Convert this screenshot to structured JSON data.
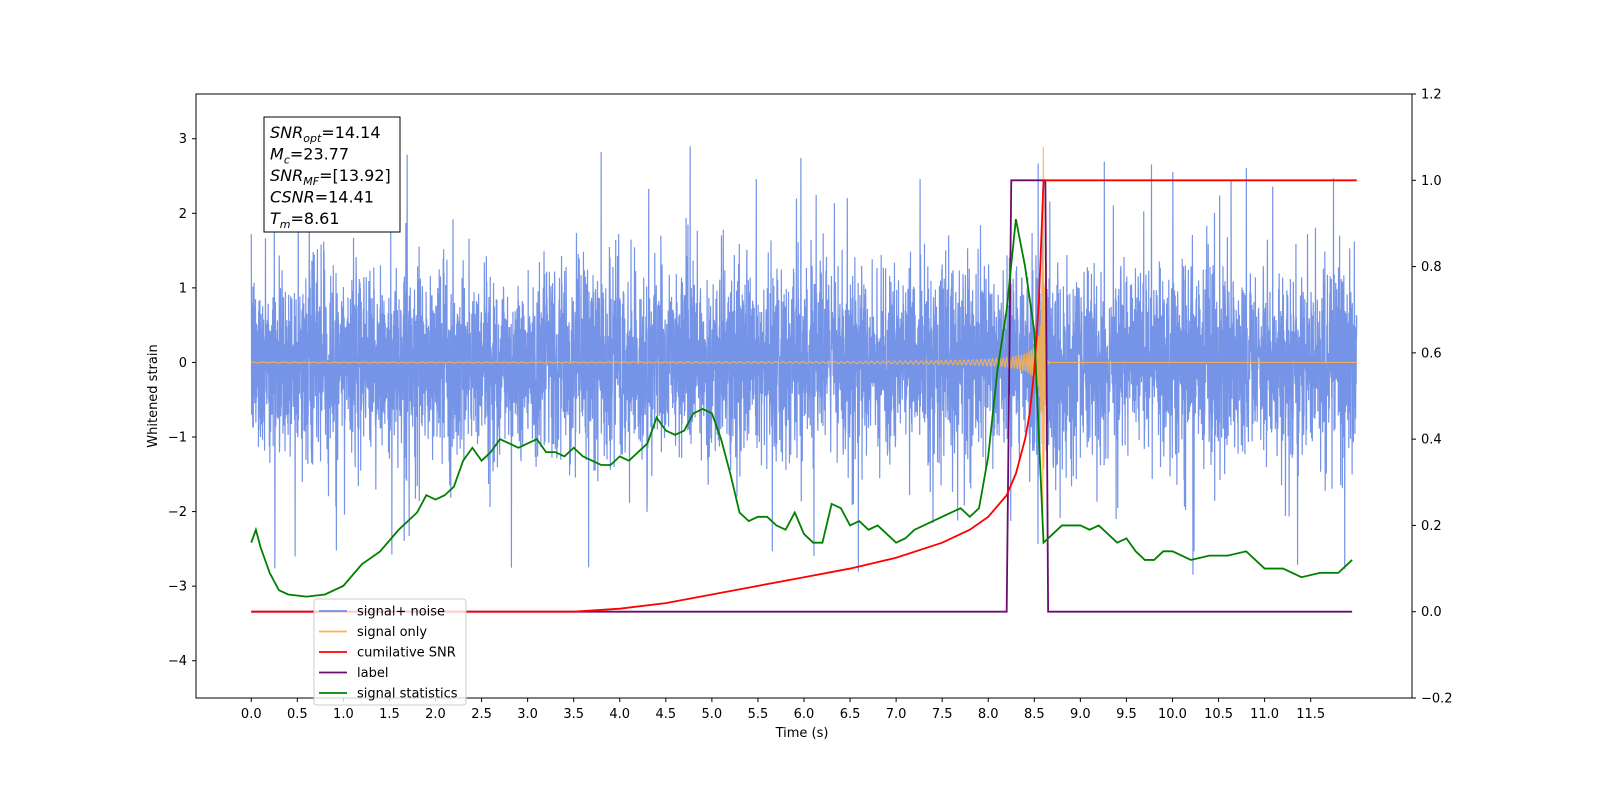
{
  "chart_data": {
    "type": "line",
    "title": "",
    "xlabel": "Time (s)",
    "ylabel": "Whitened strain",
    "xlim": [
      -0.6,
      12.6
    ],
    "ylim": [
      -4.5,
      3.6
    ],
    "y2lim": [
      -0.2,
      1.2
    ],
    "x_ticks": [
      0.0,
      0.5,
      1.0,
      1.5,
      2.0,
      2.5,
      3.0,
      3.5,
      4.0,
      4.5,
      5.0,
      5.5,
      6.0,
      6.5,
      7.0,
      7.5,
      8.0,
      8.5,
      9.0,
      9.5,
      10.0,
      10.5,
      11.0,
      11.5
    ],
    "x_tick_labels": [
      "0.0",
      "0.5",
      "1.0",
      "1.5",
      "2.0",
      "2.5",
      "3.0",
      "3.5",
      "4.0",
      "4.5",
      "5.0",
      "5.5",
      "6.0",
      "6.5",
      "7.0",
      "7.5",
      "8.0",
      "8.5",
      "9.0",
      "9.5",
      "10.0",
      "10.5",
      "11.0",
      "11.5"
    ],
    "y_ticks": [
      -4,
      -3,
      -2,
      -1,
      0,
      1,
      2,
      3
    ],
    "y_tick_labels": [
      "−4",
      "−3",
      "−2",
      "−1",
      "0",
      "1",
      "2",
      "3"
    ],
    "y2_ticks": [
      -0.2,
      0.0,
      0.2,
      0.4,
      0.6,
      0.8,
      1.0,
      1.2
    ],
    "y2_tick_labels": [
      "−0.2",
      "0.0",
      "0.2",
      "0.4",
      "0.6",
      "0.8",
      "1.0",
      "1.2"
    ],
    "grid": false,
    "legend_position": "bottom-left",
    "series": [
      {
        "name": "signal+ noise",
        "axis": "left",
        "color": "#6f8ee6",
        "noise": {
          "x_start": 0.0,
          "x_end": 12.0,
          "typical_range": [
            -1.8,
            1.8
          ],
          "extremes": [
            -4.1,
            3.25
          ]
        }
      },
      {
        "name": "signal only",
        "axis": "left",
        "color": "#ffb347",
        "chirp": {
          "x_start": 0.0,
          "x_merge": 8.6,
          "peak": 2.9
        }
      },
      {
        "name": "cumilative SNR",
        "axis": "right",
        "color": "#ff0000",
        "x": [
          0.0,
          3.5,
          4.0,
          4.5,
          5.0,
          5.5,
          6.0,
          6.5,
          7.0,
          7.5,
          7.8,
          8.0,
          8.2,
          8.3,
          8.4,
          8.45,
          8.5,
          8.55,
          8.6,
          12.0
        ],
        "values": [
          0.0,
          0.0,
          0.007,
          0.02,
          0.04,
          0.06,
          0.08,
          0.1,
          0.125,
          0.16,
          0.19,
          0.22,
          0.27,
          0.32,
          0.4,
          0.46,
          0.56,
          0.72,
          1.0,
          1.0
        ]
      },
      {
        "name": "label",
        "axis": "right",
        "color": "#6a0d6e",
        "x": [
          0.0,
          8.2,
          8.25,
          8.62,
          8.65,
          11.95
        ],
        "values": [
          0.0,
          0.0,
          1.0,
          1.0,
          0.0,
          0.0
        ]
      },
      {
        "name": "signal statistics",
        "axis": "right",
        "color": "#008000",
        "x": [
          0.0,
          0.05,
          0.1,
          0.2,
          0.3,
          0.4,
          0.6,
          0.8,
          1.0,
          1.2,
          1.4,
          1.6,
          1.8,
          1.9,
          2.0,
          2.1,
          2.2,
          2.3,
          2.4,
          2.5,
          2.6,
          2.7,
          2.8,
          2.9,
          3.0,
          3.1,
          3.2,
          3.3,
          3.4,
          3.5,
          3.6,
          3.7,
          3.8,
          3.9,
          4.0,
          4.1,
          4.2,
          4.3,
          4.4,
          4.5,
          4.6,
          4.7,
          4.8,
          4.9,
          5.0,
          5.1,
          5.2,
          5.3,
          5.4,
          5.5,
          5.6,
          5.7,
          5.8,
          5.9,
          6.0,
          6.1,
          6.2,
          6.3,
          6.4,
          6.5,
          6.6,
          6.7,
          6.8,
          6.9,
          7.0,
          7.1,
          7.2,
          7.3,
          7.4,
          7.5,
          7.6,
          7.7,
          7.8,
          7.9,
          8.0,
          8.1,
          8.2,
          8.3,
          8.4,
          8.5,
          8.6,
          8.7,
          8.8,
          8.9,
          9.0,
          9.1,
          9.2,
          9.3,
          9.4,
          9.5,
          9.6,
          9.7,
          9.8,
          9.9,
          10.0,
          10.2,
          10.4,
          10.6,
          10.8,
          11.0,
          11.2,
          11.4,
          11.6,
          11.8,
          11.95
        ],
        "values": [
          0.16,
          0.19,
          0.15,
          0.09,
          0.05,
          0.04,
          0.035,
          0.04,
          0.06,
          0.11,
          0.14,
          0.19,
          0.23,
          0.27,
          0.26,
          0.27,
          0.29,
          0.35,
          0.38,
          0.35,
          0.37,
          0.4,
          0.39,
          0.38,
          0.39,
          0.4,
          0.37,
          0.37,
          0.36,
          0.38,
          0.36,
          0.35,
          0.34,
          0.34,
          0.36,
          0.35,
          0.37,
          0.39,
          0.45,
          0.42,
          0.41,
          0.42,
          0.46,
          0.47,
          0.46,
          0.4,
          0.32,
          0.23,
          0.21,
          0.22,
          0.22,
          0.2,
          0.19,
          0.23,
          0.18,
          0.16,
          0.16,
          0.25,
          0.24,
          0.2,
          0.21,
          0.19,
          0.2,
          0.18,
          0.16,
          0.17,
          0.19,
          0.2,
          0.21,
          0.22,
          0.23,
          0.24,
          0.22,
          0.24,
          0.36,
          0.56,
          0.7,
          0.91,
          0.8,
          0.65,
          0.16,
          0.18,
          0.2,
          0.2,
          0.2,
          0.19,
          0.2,
          0.18,
          0.16,
          0.17,
          0.14,
          0.12,
          0.12,
          0.14,
          0.14,
          0.12,
          0.13,
          0.13,
          0.14,
          0.1,
          0.1,
          0.08,
          0.09,
          0.09,
          0.12
        ]
      }
    ],
    "annotation": {
      "lines": [
        {
          "base": "SNR",
          "sub": "opt",
          "text": "=14.14"
        },
        {
          "base": "M",
          "sub": "c",
          "text": "=23.77"
        },
        {
          "base": "SNR",
          "sub": "MF",
          "text": "=[13.92]"
        },
        {
          "base": "CSNR",
          "sub": "",
          "text": "=14.41"
        },
        {
          "base": "T",
          "sub": "m",
          "text": "=8.61"
        }
      ]
    }
  }
}
